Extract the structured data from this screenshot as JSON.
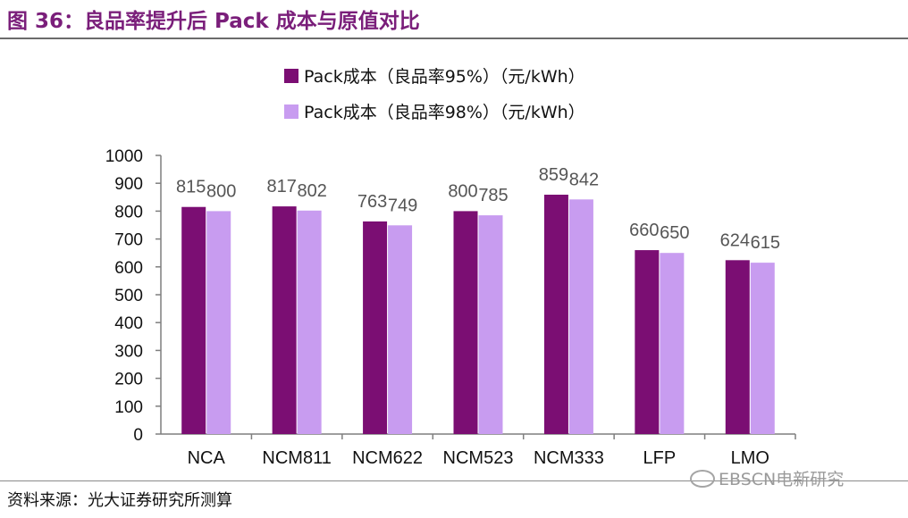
{
  "header": {
    "title": "图 36：良品率提升后 Pack 成本与原值对比"
  },
  "footer": {
    "source": "资料来源：光大证券研究所测算",
    "watermark": "EBSCN电新研究"
  },
  "colors": {
    "series1": "#7b0e73",
    "series2": "#c89cf0",
    "title": "#7a1e7a"
  },
  "chart_data": {
    "type": "bar",
    "categories": [
      "NCA",
      "NCM811",
      "NCM622",
      "NCM523",
      "NCM333",
      "LFP",
      "LMO"
    ],
    "series": [
      {
        "name": "Pack成本（良品率95%）（元/kWh）",
        "values": [
          815,
          817,
          763,
          800,
          859,
          660,
          624
        ]
      },
      {
        "name": "Pack成本（良品率98%）（元/kWh）",
        "values": [
          800,
          802,
          749,
          785,
          842,
          650,
          615
        ]
      }
    ],
    "yticks": [
      "0",
      "100",
      "200",
      "300",
      "400",
      "500",
      "600",
      "700",
      "800",
      "900",
      "1000"
    ],
    "ylim": [
      0,
      1000
    ],
    "grid": false,
    "legend_position": "top-center"
  }
}
